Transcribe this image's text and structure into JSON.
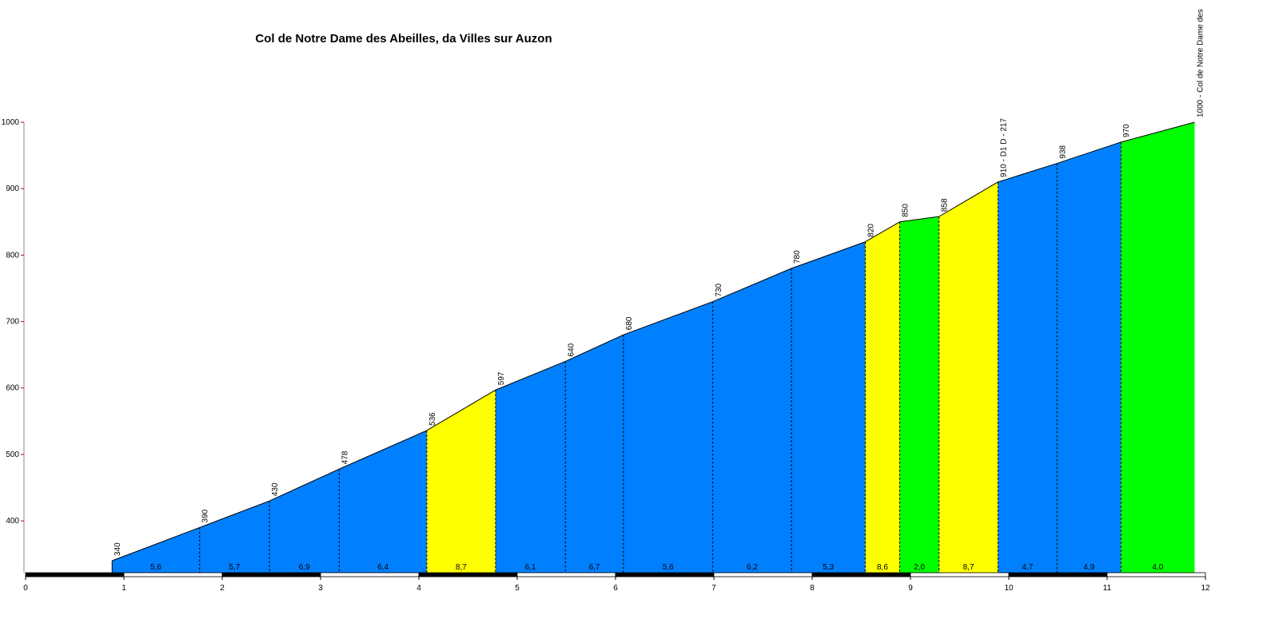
{
  "chart_data": {
    "type": "area",
    "title": "Col de Notre Dame des Abeilles, da Villes sur Auzon",
    "x": [
      0.88,
      1.77,
      2.48,
      3.19,
      4.08,
      4.78,
      5.49,
      6.08,
      6.99,
      7.79,
      8.54,
      8.89,
      9.29,
      9.89,
      10.49,
      11.14,
      11.89
    ],
    "values": [
      340,
      390,
      430,
      478,
      536,
      597,
      640,
      680,
      730,
      780,
      820,
      850,
      858,
      910,
      938,
      970,
      1000
    ],
    "value_labels": [
      "340",
      "390",
      "430",
      "478",
      "536",
      "597",
      "640",
      "680",
      "730",
      "780",
      "820",
      "850",
      "858",
      "910 - D1 D - 217",
      "938",
      "970",
      "1000 - Col de Notre Dame des"
    ],
    "gradients": [
      5.6,
      5.7,
      6.9,
      6.4,
      8.7,
      6.1,
      6.7,
      5.6,
      6.2,
      5.3,
      8.6,
      2.0,
      8.7,
      4.7,
      4.9,
      4.0
    ],
    "gradient_labels": [
      "5,6",
      "5,7",
      "6,9",
      "6,4",
      "8,7",
      "6,1",
      "6,7",
      "5,6",
      "6,2",
      "5,3",
      "8,6",
      "2,0",
      "8,7",
      "4,7",
      "4,9",
      "4,0"
    ],
    "segment_colors": [
      "#0080ff",
      "#0080ff",
      "#0080ff",
      "#0080ff",
      "#ffff00",
      "#0080ff",
      "#0080ff",
      "#0080ff",
      "#0080ff",
      "#0080ff",
      "#ffff00",
      "#00ff00",
      "#ffff00",
      "#0080ff",
      "#0080ff",
      "#00ff00"
    ],
    "xlim": [
      0,
      12
    ],
    "xticks": [
      0,
      1,
      2,
      3,
      4,
      5,
      6,
      7,
      8,
      9,
      10,
      11,
      12
    ],
    "ylim": [
      322,
      1000
    ],
    "yticks": [
      400,
      500,
      600,
      700,
      800,
      900,
      1000
    ]
  }
}
